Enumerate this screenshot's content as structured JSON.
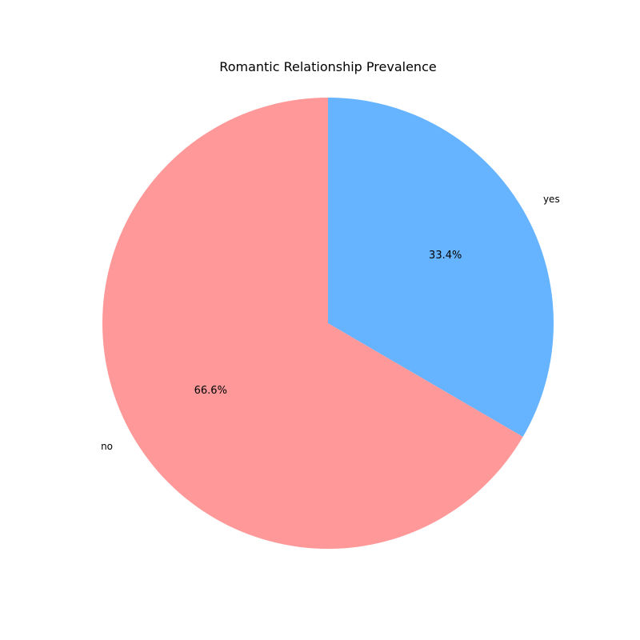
{
  "chart_data": {
    "type": "pie",
    "title": "Romantic Relationship Prevalence",
    "slices": [
      {
        "label": "yes",
        "value": 33.4,
        "pct_label": "33.4%",
        "color": "#66b3ff"
      },
      {
        "label": "no",
        "value": 66.6,
        "pct_label": "66.6%",
        "color": "#ff9999"
      }
    ],
    "start_angle_deg": 90,
    "direction": "clockwise"
  }
}
